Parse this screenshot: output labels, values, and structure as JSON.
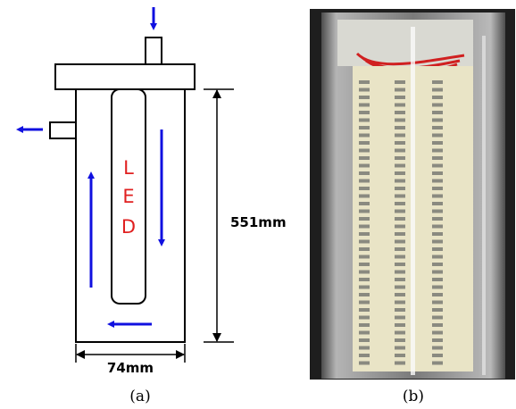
{
  "panel_a": {
    "led_label": [
      "L",
      "E",
      "D"
    ],
    "height_label": "551mm",
    "width_label": "74mm",
    "caption": "(a)"
  },
  "panel_b": {
    "caption": "(b)"
  }
}
